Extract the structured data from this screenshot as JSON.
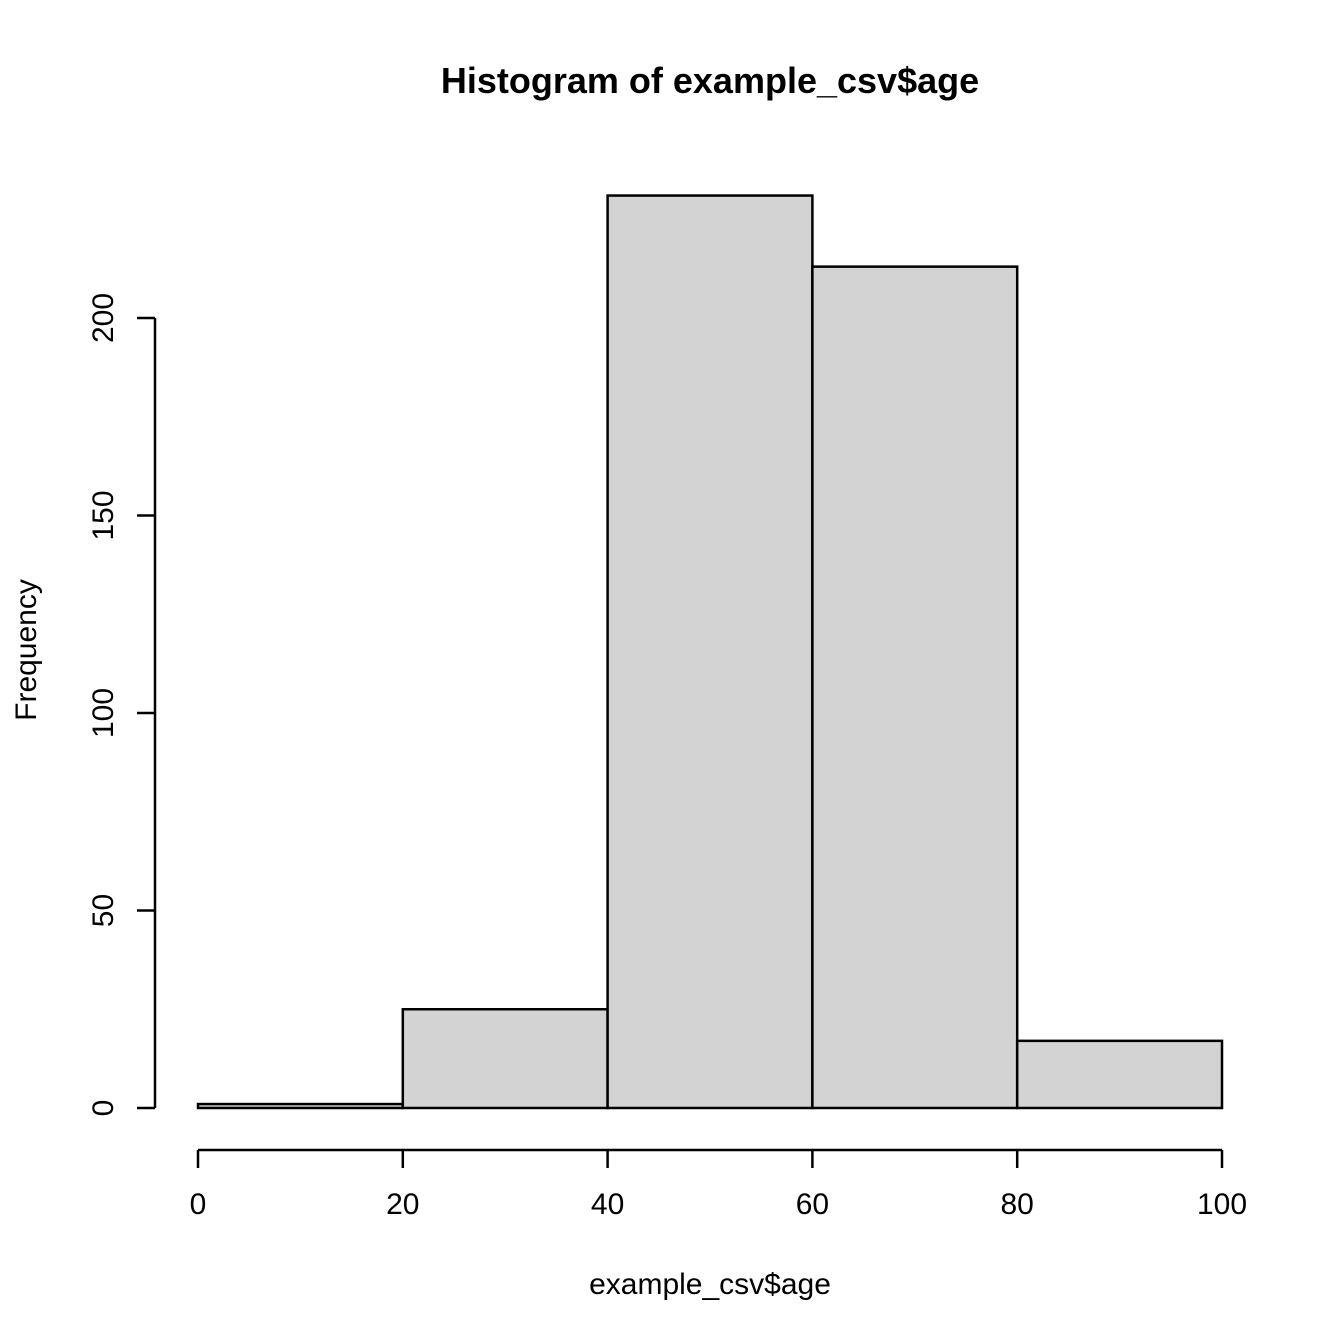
{
  "chart_data": {
    "type": "bar",
    "subtype": "histogram",
    "title": "Histogram of example_csv$age",
    "xlabel": "example_csv$age",
    "ylabel": "Frequency",
    "bin_breaks": [
      0,
      20,
      40,
      60,
      80,
      100
    ],
    "categories": [
      "0-20",
      "20-40",
      "40-60",
      "60-80",
      "80-100"
    ],
    "values": [
      1,
      25,
      231,
      213,
      17
    ],
    "x_ticks": [
      0,
      20,
      40,
      60,
      80,
      100
    ],
    "y_ticks": [
      0,
      50,
      100,
      150,
      200
    ],
    "xlim": [
      0,
      100
    ],
    "ylim": [
      0,
      200
    ],
    "grid": false,
    "legend_position": "none",
    "bar_fill": "#D3D3D3",
    "bar_stroke": "#000000",
    "axis_color": "#000000",
    "text_color": "#000000",
    "background": "#FFFFFF"
  }
}
